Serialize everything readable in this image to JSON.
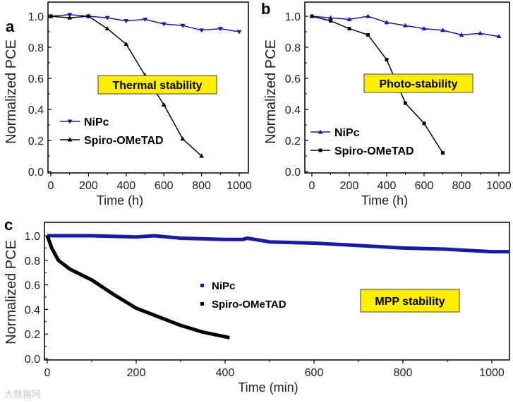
{
  "watermark": "大数据网",
  "colors": {
    "nipc": "#1a1aa6",
    "spiro": "#000000",
    "annot_bg": "#ffee00"
  },
  "chart_data": [
    {
      "panel": "a",
      "type": "line",
      "title": "Thermal stability",
      "xlabel": "Time (h)",
      "ylabel": "Normalized PCE",
      "xlim": [
        0,
        1000
      ],
      "ylim": [
        0,
        1.1
      ],
      "xticks": [
        "0",
        "200",
        "400",
        "600",
        "800",
        "1000"
      ],
      "yticks": [
        "0.0",
        "0.2",
        "0.4",
        "0.6",
        "0.8",
        "1.0"
      ],
      "legend": "bottom-left",
      "series": [
        {
          "name": "NiPc",
          "marker": "triangle-down",
          "x": [
            0,
            100,
            200,
            300,
            400,
            500,
            600,
            700,
            800,
            900,
            1000
          ],
          "y": [
            1.0,
            1.01,
            1.0,
            0.99,
            0.97,
            0.98,
            0.95,
            0.94,
            0.91,
            0.92,
            0.9
          ]
        },
        {
          "name": "Spiro-OMeTAD",
          "marker": "triangle-up",
          "x": [
            0,
            100,
            200,
            300,
            400,
            500,
            600,
            700,
            800
          ],
          "y": [
            1.0,
            0.99,
            1.0,
            0.92,
            0.82,
            0.62,
            0.43,
            0.21,
            0.1
          ]
        }
      ]
    },
    {
      "panel": "b",
      "type": "line",
      "title": "Photo-stability",
      "xlabel": "Time (h)",
      "ylabel": "Normalized PCE",
      "xlim": [
        0,
        1000
      ],
      "ylim": [
        0,
        1.1
      ],
      "xticks": [
        "0",
        "200",
        "400",
        "600",
        "800",
        "1000"
      ],
      "yticks": [
        "0.0",
        "0.2",
        "0.4",
        "0.6",
        "0.8",
        "1.0"
      ],
      "legend": "bottom-left",
      "series": [
        {
          "name": "NiPc",
          "marker": "triangle-up",
          "x": [
            0,
            100,
            200,
            300,
            400,
            500,
            600,
            700,
            800,
            900,
            1000
          ],
          "y": [
            1.0,
            0.99,
            0.98,
            1.0,
            0.96,
            0.94,
            0.92,
            0.91,
            0.88,
            0.89,
            0.87
          ]
        },
        {
          "name": "Spiro-OMeTAD",
          "marker": "square",
          "x": [
            0,
            100,
            200,
            300,
            400,
            500,
            600,
            700
          ],
          "y": [
            1.0,
            0.97,
            0.92,
            0.88,
            0.72,
            0.44,
            0.31,
            0.12
          ]
        }
      ]
    },
    {
      "panel": "c",
      "type": "scatter",
      "title": "MPP stability",
      "xlabel": "Time (min)",
      "ylabel": "Normalized PCE",
      "xlim": [
        0,
        1040
      ],
      "ylim": [
        0,
        1.1
      ],
      "xticks": [
        "0",
        "200",
        "400",
        "600",
        "800",
        "1000"
      ],
      "yticks": [
        "0.0",
        "0.2",
        "0.4",
        "0.6",
        "0.8",
        "1.0"
      ],
      "legend": "center",
      "series": [
        {
          "name": "NiPc",
          "marker": "square",
          "x": [
            0,
            100,
            200,
            240,
            300,
            400,
            440,
            450,
            500,
            600,
            700,
            800,
            900,
            1000,
            1040
          ],
          "y": [
            1.0,
            1.0,
            0.99,
            1.0,
            0.98,
            0.97,
            0.97,
            0.98,
            0.95,
            0.94,
            0.92,
            0.9,
            0.89,
            0.87,
            0.87
          ]
        },
        {
          "name": "Spiro-OMeTAD",
          "marker": "square",
          "x": [
            0,
            10,
            25,
            50,
            100,
            150,
            200,
            250,
            300,
            350,
            410
          ],
          "y": [
            1.0,
            0.9,
            0.8,
            0.73,
            0.64,
            0.52,
            0.41,
            0.34,
            0.27,
            0.215,
            0.17
          ]
        }
      ]
    }
  ]
}
